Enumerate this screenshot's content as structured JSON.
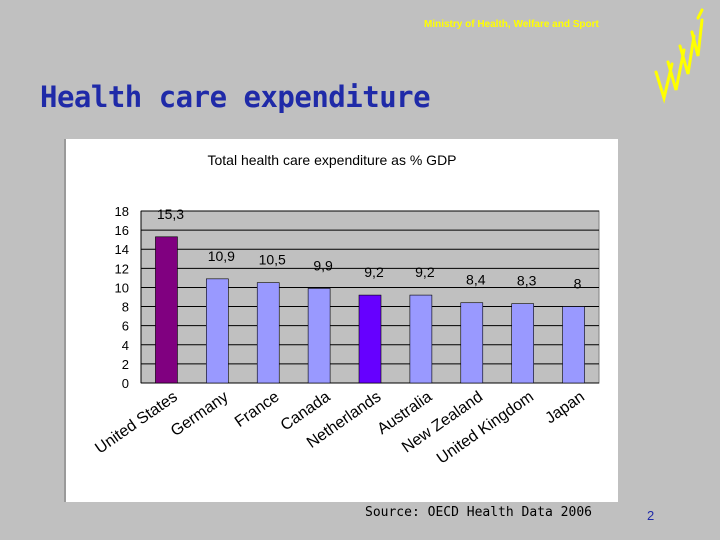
{
  "header": {
    "ministry": "Ministry of Health, Welfare and Sport",
    "logo_icon": "ministry-logo-icon"
  },
  "slide": {
    "title": "Health care expenditure",
    "source": "Source: OECD Health Data 2006",
    "page_number": "2"
  },
  "chart_data": {
    "type": "bar",
    "title": "Total health care expenditure as % GDP",
    "categories": [
      "United States",
      "Germany",
      "France",
      "Canada",
      "Netherlands",
      "Australia",
      "New Zealand",
      "United Kingdom",
      "Japan"
    ],
    "values": [
      15.3,
      10.9,
      10.5,
      9.9,
      9.2,
      9.2,
      8.4,
      8.3,
      8
    ],
    "data_labels": [
      "15,3",
      "10,9",
      "10,5",
      "9,9",
      "9,2",
      "9,2",
      "8,4",
      "8,3",
      "8"
    ],
    "bar_colors": [
      "#800080",
      "#9999ff",
      "#9999ff",
      "#9999ff",
      "#6600ff",
      "#9999ff",
      "#9999ff",
      "#9999ff",
      "#9999ff"
    ],
    "ylim": [
      0,
      18
    ],
    "yticks": [
      0,
      2,
      4,
      6,
      8,
      10,
      12,
      14,
      16,
      18
    ],
    "xlabel": "",
    "ylabel": "",
    "grid": true,
    "plot_background": "#c0c0c0"
  },
  "colors": {
    "page_background": "#c0c0c0",
    "title": "#1f2aa8",
    "ministry": "#ffff00"
  }
}
